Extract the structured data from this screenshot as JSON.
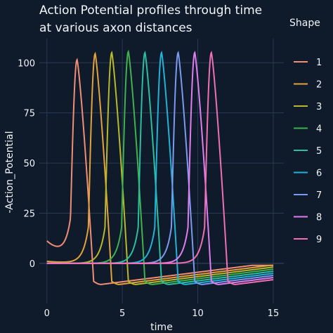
{
  "chart_data": {
    "type": "line",
    "title_lines": [
      "Action Potential profiles through time",
      "at various axon distances"
    ],
    "xlabel": "time",
    "ylabel": "-Action_Potential",
    "xlim": [
      -0.5,
      15.7
    ],
    "ylim": [
      -20,
      112
    ],
    "xticks": [
      0,
      5,
      10,
      15
    ],
    "yticks": [
      0,
      25,
      50,
      75,
      100
    ],
    "grid": true,
    "legend_title": "Shape",
    "legend_position": "right",
    "background": "#0f1a2b",
    "grid_color": "#2a3a52",
    "series": [
      {
        "name": "1",
        "color": "#f28e76",
        "peak_time": 2.0,
        "peak_value": 101.5,
        "initial_value": 11.0
      },
      {
        "name": "2",
        "color": "#e3a33a",
        "peak_time": 3.2,
        "peak_value": 104.5,
        "initial_value": 1.0
      },
      {
        "name": "3",
        "color": "#b9b92a",
        "peak_time": 4.3,
        "peak_value": 105.0,
        "initial_value": 0.0
      },
      {
        "name": "4",
        "color": "#3eb34d",
        "peak_time": 5.4,
        "peak_value": 105.5,
        "initial_value": 0.0
      },
      {
        "name": "5",
        "color": "#2bbf9d",
        "peak_time": 6.5,
        "peak_value": 105.0,
        "initial_value": 0.0
      },
      {
        "name": "6",
        "color": "#1fb3d8",
        "peak_time": 7.6,
        "peak_value": 105.0,
        "initial_value": 0.0
      },
      {
        "name": "7",
        "color": "#7b9af0",
        "peak_time": 8.7,
        "peak_value": 105.0,
        "initial_value": 0.0
      },
      {
        "name": "8",
        "color": "#e07ef0",
        "peak_time": 9.8,
        "peak_value": 105.0,
        "initial_value": 0.0
      },
      {
        "name": "9",
        "color": "#f06fb5",
        "peak_time": 10.9,
        "peak_value": 105.0,
        "initial_value": 0.0
      }
    ]
  }
}
